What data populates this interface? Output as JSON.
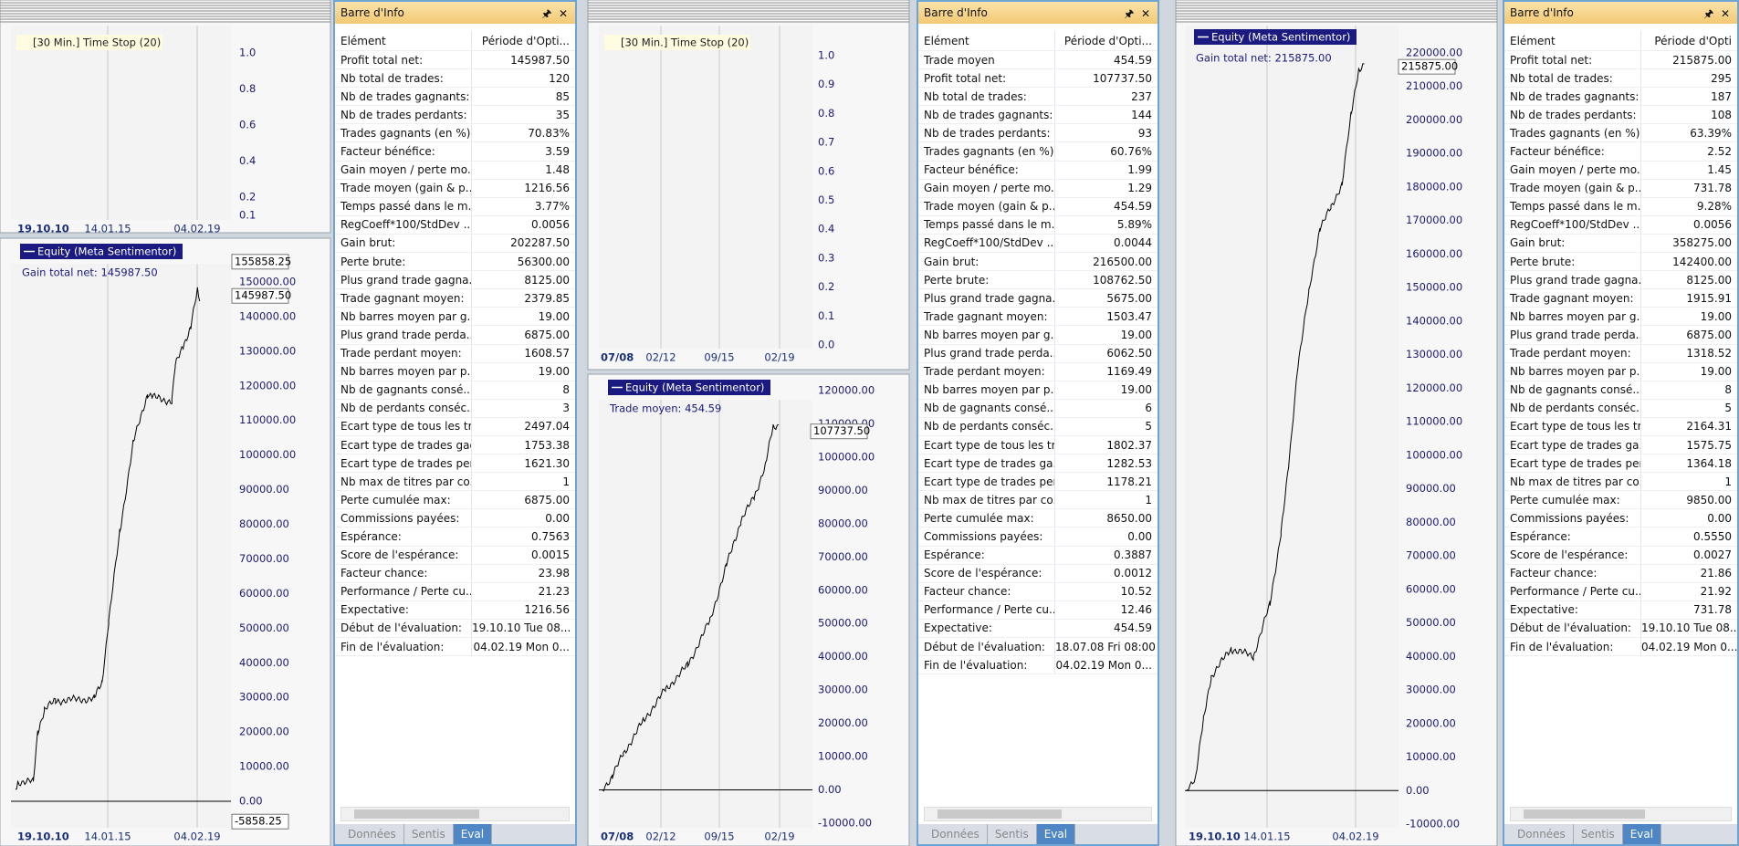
{
  "panels": [
    {
      "top": {
        "label": "[30 Min.] Time Stop  (20)",
        "yticks": [
          "1.0",
          "0.8",
          "0.6",
          "0.4",
          "0.2",
          "0.1"
        ],
        "xlabels": [
          "19.10.10",
          "14.01.15",
          "04.02.19"
        ]
      },
      "equity": {
        "label": "Equity (Meta Sentimentor)",
        "gain": "Gain total net: 145987.50",
        "yticks": [
          "150000.00",
          "140000.00",
          "130000.00",
          "120000.00",
          "110000.00",
          "100000.00",
          "90000.00",
          "80000.00",
          "70000.00",
          "60000.00",
          "50000.00",
          "40000.00",
          "30000.00",
          "20000.00",
          "10000.00",
          "0.00"
        ],
        "markers": [
          "155858.25",
          "145987.50",
          "-5858.25"
        ],
        "xlabels": [
          "19.10.10",
          "14.01.15",
          "04.02.19"
        ]
      },
      "info": {
        "title": "Barre d'Info",
        "headers": [
          "Elément",
          "Période d'Opti..."
        ],
        "rows": [
          [
            "Profit total net:",
            "145987.50"
          ],
          [
            "Nb total de trades:",
            "120"
          ],
          [
            "Nb de trades gagnants:",
            "85"
          ],
          [
            "Nb de trades perdants:",
            "35"
          ],
          [
            "Trades gagnants (en %):",
            "70.83%"
          ],
          [
            "Facteur bénéfice:",
            "3.59"
          ],
          [
            "Gain moyen / perte mo...",
            "1.48"
          ],
          [
            "Trade moyen (gain & p...",
            "1216.56"
          ],
          [
            "Temps passé dans le m...",
            "3.77%"
          ],
          [
            "RegCoeff*100/StdDev ...",
            "0.0056"
          ],
          [
            "Gain brut:",
            "202287.50"
          ],
          [
            "Perte brute:",
            "56300.00"
          ],
          [
            "Plus grand trade gagna...",
            "8125.00"
          ],
          [
            "Trade gagnant moyen:",
            "2379.85"
          ],
          [
            "Nb barres moyen par g...",
            "19.00"
          ],
          [
            "Plus grand trade perda...",
            "6875.00"
          ],
          [
            "Trade perdant moyen:",
            "1608.57"
          ],
          [
            "Nb barres moyen par p...",
            "19.00"
          ],
          [
            "Nb de gagnants consé...",
            "8"
          ],
          [
            "Nb de perdants conséc...",
            "3"
          ],
          [
            "Ecart type de tous les tr...",
            "2497.04"
          ],
          [
            "Ecart type de trades gag...",
            "1753.38"
          ],
          [
            "Ecart type de trades per...",
            "1621.30"
          ],
          [
            "Nb max de titres par co...",
            "1"
          ],
          [
            "Perte cumulée max:",
            "6875.00"
          ],
          [
            "Commissions payées:",
            "0.00"
          ],
          [
            "Espérance:",
            "0.7563"
          ],
          [
            "Score de l'espérance:",
            "0.0015"
          ],
          [
            "Facteur chance:",
            "23.98"
          ],
          [
            "Performance / Perte cu...",
            "21.23"
          ],
          [
            "Expectative:",
            "1216.56"
          ],
          [
            "Début de l'évaluation:",
            "19.10.10 Tue 08..."
          ],
          [
            "Fin de l'évaluation:",
            "04.02.19 Mon 0..."
          ]
        ],
        "tabs": [
          "Données",
          "Sentis",
          "Eval"
        ]
      }
    },
    {
      "top": {
        "label": "[30 Min.] Time Stop  (20)",
        "yticks": [
          "1.0",
          "0.9",
          "0.8",
          "0.7",
          "0.6",
          "0.5",
          "0.4",
          "0.3",
          "0.2",
          "0.1",
          "0.0"
        ],
        "xlabels": [
          "07/08",
          "02/12",
          "09/15",
          "02/19"
        ]
      },
      "equity": {
        "label": "Equity (Meta Sentimentor)",
        "gain": "Trade moyen: 454.59",
        "yticks": [
          "120000.00",
          "110000.00",
          "100000.00",
          "90000.00",
          "80000.00",
          "70000.00",
          "60000.00",
          "50000.00",
          "40000.00",
          "30000.00",
          "20000.00",
          "10000.00",
          "0.00",
          "-10000.00"
        ],
        "markers": [
          "107737.50"
        ],
        "xlabels": [
          "07/08",
          "02/12",
          "09/15",
          "02/19"
        ]
      },
      "info": {
        "title": "Barre d'Info",
        "headers": [
          "Elément",
          "Période d'Opti..."
        ],
        "rows": [
          [
            "Trade moyen",
            "454.59"
          ],
          [
            "Profit total net:",
            "107737.50"
          ],
          [
            "Nb total de trades:",
            "237"
          ],
          [
            "Nb de trades gagnants:",
            "144"
          ],
          [
            "Nb de trades perdants:",
            "93"
          ],
          [
            "Trades gagnants (en %):",
            "60.76%"
          ],
          [
            "Facteur bénéfice:",
            "1.99"
          ],
          [
            "Gain moyen / perte mo...",
            "1.29"
          ],
          [
            "Trade moyen (gain & p...",
            "454.59"
          ],
          [
            "Temps passé dans le m...",
            "5.89%"
          ],
          [
            "RegCoeff*100/StdDev ...",
            "0.0044"
          ],
          [
            "Gain brut:",
            "216500.00"
          ],
          [
            "Perte brute:",
            "108762.50"
          ],
          [
            "Plus grand trade gagna...",
            "5675.00"
          ],
          [
            "Trade gagnant moyen:",
            "1503.47"
          ],
          [
            "Nb barres moyen par g...",
            "19.00"
          ],
          [
            "Plus grand trade perda...",
            "6062.50"
          ],
          [
            "Trade perdant moyen:",
            "1169.49"
          ],
          [
            "Nb barres moyen par p...",
            "19.00"
          ],
          [
            "Nb de gagnants consé...",
            "6"
          ],
          [
            "Nb de perdants conséc...",
            "5"
          ],
          [
            "Ecart type de tous les tr...",
            "1802.37"
          ],
          [
            "Ecart type de trades ga...",
            "1282.53"
          ],
          [
            "Ecart type de trades per...",
            "1178.21"
          ],
          [
            "Nb max de titres par co...",
            "1"
          ],
          [
            "Perte cumulée max:",
            "8650.00"
          ],
          [
            "Commissions payées:",
            "0.00"
          ],
          [
            "Espérance:",
            "0.3887"
          ],
          [
            "Score de l'espérance:",
            "0.0012"
          ],
          [
            "Facteur chance:",
            "10.52"
          ],
          [
            "Performance / Perte cu...",
            "12.46"
          ],
          [
            "Expectative:",
            "454.59"
          ],
          [
            "Début de l'évaluation:",
            "18.07.08 Fri 08:00"
          ],
          [
            "Fin de l'évaluation:",
            "04.02.19 Mon 0..."
          ]
        ],
        "tabs": [
          "Données",
          "Sentis",
          "Eval"
        ]
      }
    },
    {
      "equity": {
        "label": "Equity (Meta Sentimentor)",
        "gain": "Gain total net: 215875.00",
        "yticks": [
          "220000.00",
          "210000.00",
          "200000.00",
          "190000.00",
          "180000.00",
          "170000.00",
          "160000.00",
          "150000.00",
          "140000.00",
          "130000.00",
          "120000.00",
          "110000.00",
          "100000.00",
          "90000.00",
          "80000.00",
          "70000.00",
          "60000.00",
          "50000.00",
          "40000.00",
          "30000.00",
          "20000.00",
          "10000.00",
          "0.00",
          "-10000.00"
        ],
        "markers": [
          "215875.00"
        ],
        "xlabels": [
          "19.10.10",
          "14.01.15",
          "04.02.19"
        ]
      },
      "info": {
        "title": "Barre d'Info",
        "headers": [
          "Elément",
          "Période d'Opti"
        ],
        "rows": [
          [
            "Profit total net:",
            "215875.00"
          ],
          [
            "Nb total de trades:",
            "295"
          ],
          [
            "Nb de trades gagnants:",
            "187"
          ],
          [
            "Nb de trades perdants:",
            "108"
          ],
          [
            "Trades gagnants (en %):",
            "63.39%"
          ],
          [
            "Facteur bénéfice:",
            "2.52"
          ],
          [
            "Gain moyen / perte mo...",
            "1.45"
          ],
          [
            "Trade moyen (gain & p...",
            "731.78"
          ],
          [
            "Temps passé dans le m...",
            "9.28%"
          ],
          [
            "RegCoeff*100/StdDev ...",
            "0.0056"
          ],
          [
            "Gain brut:",
            "358275.00"
          ],
          [
            "Perte brute:",
            "142400.00"
          ],
          [
            "Plus grand trade gagna...",
            "8125.00"
          ],
          [
            "Trade gagnant moyen:",
            "1915.91"
          ],
          [
            "Nb barres moyen par g...",
            "19.00"
          ],
          [
            "Plus grand trade perda...",
            "6875.00"
          ],
          [
            "Trade perdant moyen:",
            "1318.52"
          ],
          [
            "Nb barres moyen par p...",
            "19.00"
          ],
          [
            "Nb de gagnants consé...",
            "8"
          ],
          [
            "Nb de perdants conséc...",
            "5"
          ],
          [
            "Ecart type de tous les tr...",
            "2164.31"
          ],
          [
            "Ecart type de trades ga...",
            "1575.75"
          ],
          [
            "Ecart type de trades per...",
            "1364.18"
          ],
          [
            "Nb max de titres par co...",
            "1"
          ],
          [
            "Perte cumulée max:",
            "9850.00"
          ],
          [
            "Commissions payées:",
            "0.00"
          ],
          [
            "Espérance:",
            "0.5550"
          ],
          [
            "Score de l'espérance:",
            "0.0027"
          ],
          [
            "Facteur chance:",
            "21.86"
          ],
          [
            "Performance / Perte cu...",
            "21.92"
          ],
          [
            "Expectative:",
            "731.78"
          ],
          [
            "Début de l'évaluation:",
            "19.10.10 Tue 08..."
          ],
          [
            "Fin de l'évaluation:",
            "04.02.19 Mon 0..."
          ]
        ],
        "tabs": [
          "Données",
          "Sentis",
          "Eval"
        ]
      }
    }
  ]
}
